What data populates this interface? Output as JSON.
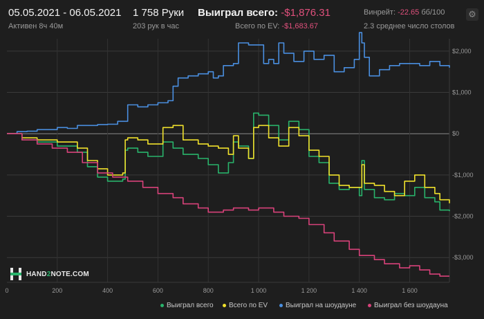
{
  "header": {
    "date_range": "05.05.2021 - 06.05.2021",
    "active": "Активен 8ч 40м",
    "hands": "1 758 Руки",
    "hands_per_hour": "203 рук в час",
    "won_total_label": "Выиграл всего:",
    "won_total_value": "-$1,876.31",
    "ev_total_label": "Всего по EV:",
    "ev_total_value": "-$1,683.67",
    "winrate_label": "Винрейт:",
    "winrate_value": "-22.65",
    "winrate_unit": "бб/100",
    "avg_tables": "2.3 среднее число столов"
  },
  "brand": {
    "name_a": "HAND",
    "name_b": "2",
    "name_c": "NOTE.COM"
  },
  "colors": {
    "background": "#1e1e1e",
    "green": "#29b36b",
    "yellow": "#f0e12c",
    "blue": "#4a8fe0",
    "pink": "#d8427a",
    "negative": "#e0507c"
  },
  "icons": {
    "settings": "gear-icon"
  },
  "chart_data": {
    "type": "line",
    "xlabel": "",
    "ylabel": "",
    "xlim": [
      0,
      1758
    ],
    "ylim": [
      -3600,
      2300
    ],
    "grid": true,
    "legend_position": "bottom-right",
    "x_ticks": [
      0,
      200,
      400,
      600,
      800,
      1000,
      1200,
      1400,
      1600
    ],
    "x_tick_labels": [
      "0",
      "200",
      "400",
      "600",
      "800",
      "1 000",
      "1 200",
      "1 400",
      "1 600"
    ],
    "y_ticks": [
      2000,
      1000,
      0,
      -1000,
      -2000,
      -3000
    ],
    "y_tick_labels": [
      "$2,000",
      "$1,000",
      "$0",
      "-$1,000",
      "-$2,000",
      "-$3,000"
    ],
    "series": [
      {
        "name": "Выиграл всего",
        "color": "#29b36b",
        "x": [
          0,
          60,
          120,
          200,
          280,
          320,
          360,
          400,
          460,
          470,
          480,
          520,
          560,
          620,
          660,
          700,
          760,
          800,
          840,
          880,
          900,
          920,
          960,
          980,
          1000,
          1040,
          1080,
          1120,
          1160,
          1200,
          1240,
          1280,
          1320,
          1360,
          1400,
          1410,
          1420,
          1460,
          1500,
          1540,
          1580,
          1620,
          1660,
          1700,
          1720,
          1758
        ],
        "y": [
          0,
          -150,
          -200,
          -300,
          -450,
          -800,
          -1050,
          -1150,
          -1100,
          -400,
          -350,
          -450,
          -550,
          -200,
          -350,
          -500,
          -600,
          -750,
          -950,
          -700,
          -200,
          -300,
          -600,
          500,
          450,
          200,
          -150,
          300,
          100,
          -550,
          -700,
          -1200,
          -1350,
          -1300,
          -1500,
          -650,
          -1350,
          -1550,
          -1600,
          -1450,
          -1500,
          -1300,
          -1550,
          -1650,
          -1850,
          -1876
        ]
      },
      {
        "name": "Всего по EV",
        "color": "#f0e12c",
        "x": [
          0,
          60,
          120,
          200,
          280,
          320,
          360,
          400,
          460,
          470,
          480,
          520,
          560,
          620,
          660,
          700,
          760,
          800,
          840,
          880,
          900,
          920,
          960,
          980,
          1000,
          1040,
          1080,
          1120,
          1160,
          1200,
          1240,
          1280,
          1320,
          1360,
          1400,
          1410,
          1420,
          1460,
          1500,
          1540,
          1580,
          1620,
          1660,
          1700,
          1720,
          1758
        ],
        "y": [
          0,
          -100,
          -150,
          -200,
          -350,
          -650,
          -850,
          -1000,
          -950,
          -150,
          -100,
          -150,
          -250,
          150,
          200,
          -150,
          -250,
          -300,
          -350,
          -500,
          -50,
          -350,
          -600,
          150,
          200,
          -100,
          -300,
          150,
          -50,
          -400,
          -550,
          -1000,
          -1250,
          -1300,
          -1300,
          -750,
          -1200,
          -1250,
          -1400,
          -1500,
          -1150,
          -1000,
          -1300,
          -1450,
          -1600,
          -1684
        ]
      },
      {
        "name": "Выиграл на шоудауне",
        "color": "#4a8fe0",
        "x": [
          0,
          40,
          80,
          120,
          160,
          200,
          240,
          280,
          320,
          360,
          400,
          440,
          470,
          480,
          520,
          560,
          600,
          640,
          660,
          680,
          720,
          760,
          800,
          820,
          840,
          860,
          880,
          900,
          920,
          960,
          1000,
          1020,
          1040,
          1060,
          1080,
          1100,
          1140,
          1180,
          1220,
          1260,
          1300,
          1340,
          1380,
          1400,
          1410,
          1420,
          1440,
          1480,
          1520,
          1560,
          1600,
          1640,
          1680,
          1720,
          1758
        ],
        "y": [
          0,
          50,
          60,
          100,
          100,
          150,
          130,
          200,
          200,
          220,
          230,
          300,
          300,
          700,
          650,
          700,
          750,
          800,
          1150,
          1350,
          1400,
          1450,
          1500,
          1350,
          1400,
          1650,
          1650,
          1700,
          2200,
          2150,
          2150,
          1700,
          1800,
          1700,
          2200,
          1950,
          1750,
          2000,
          1800,
          1900,
          1500,
          1600,
          1800,
          2450,
          2200,
          1850,
          1400,
          1550,
          1650,
          1700,
          1700,
          1650,
          1750,
          1650,
          1600
        ]
      },
      {
        "name": "Выиграл без шоудауна",
        "color": "#d8427a",
        "x": [
          0,
          60,
          120,
          180,
          240,
          300,
          360,
          420,
          480,
          540,
          600,
          660,
          700,
          760,
          800,
          860,
          900,
          960,
          1000,
          1060,
          1100,
          1160,
          1200,
          1260,
          1300,
          1360,
          1400,
          1460,
          1500,
          1560,
          1600,
          1640,
          1680,
          1720,
          1758
        ],
        "y": [
          0,
          -150,
          -250,
          -350,
          -450,
          -700,
          -950,
          -1050,
          -1150,
          -1300,
          -1450,
          -1550,
          -1700,
          -1800,
          -1900,
          -1850,
          -1800,
          -1850,
          -1800,
          -1900,
          -2000,
          -2050,
          -2200,
          -2400,
          -2600,
          -2800,
          -2950,
          -3050,
          -3150,
          -3250,
          -3200,
          -3300,
          -3400,
          -3450,
          -3450
        ]
      }
    ]
  }
}
